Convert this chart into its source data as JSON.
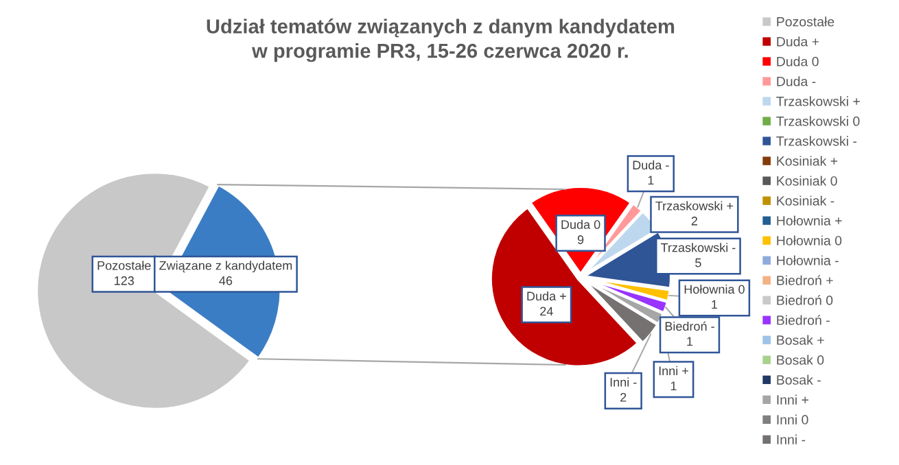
{
  "chart_data": [
    {
      "type": "pie",
      "title": "Udział tematów związanych z danym kandydatem\nw programie PR3, 15-26 czerwca 2020 r.",
      "categories": [
        "Pozostałe",
        "Związane z kandydatem"
      ],
      "values": [
        123,
        46
      ],
      "colors": [
        "#c8c8c8",
        "#3b7dc4"
      ],
      "data_labels": true
    },
    {
      "type": "pie",
      "categories": [
        "Pozostałe",
        "Duda +",
        "Duda 0",
        "Duda -",
        "Trzaskowski +",
        "Trzaskowski 0",
        "Trzaskowski -",
        "Kosiniak +",
        "Kosiniak 0",
        "Kosiniak -",
        "Hołownia +",
        "Hołownia 0",
        "Hołownia -",
        "Biedroń +",
        "Biedroń 0",
        "Biedroń -",
        "Bosak +",
        "Bosak 0",
        "Bosak -",
        "Inni +",
        "Inni 0",
        "Inni -"
      ],
      "values": [
        null,
        24,
        9,
        1,
        2,
        0,
        5,
        0,
        0,
        0,
        0,
        1,
        0,
        0,
        0,
        1,
        0,
        0,
        0,
        1,
        0,
        2
      ],
      "value_labels": [
        null,
        "24",
        "9",
        "1",
        "2",
        null,
        "5",
        null,
        null,
        null,
        null,
        "1",
        null,
        null,
        null,
        "1",
        null,
        null,
        null,
        "1",
        null,
        "2"
      ],
      "colors": [
        "#c8c8c8",
        "#c00000",
        "#ff0000",
        "#ff9999",
        "#bdd7ee",
        "#70ad47",
        "#2f5597",
        "#843c0c",
        "#595959",
        "#bf9000",
        "#255e91",
        "#ffc000",
        "#8faadc",
        "#f4b183",
        "#c9c9c9",
        "#9933ff",
        "#9dc3e6",
        "#a9d18e",
        "#203864",
        "#a6a6a6",
        "#7f7f7f",
        "#767171"
      ],
      "legend": "right"
    }
  ]
}
